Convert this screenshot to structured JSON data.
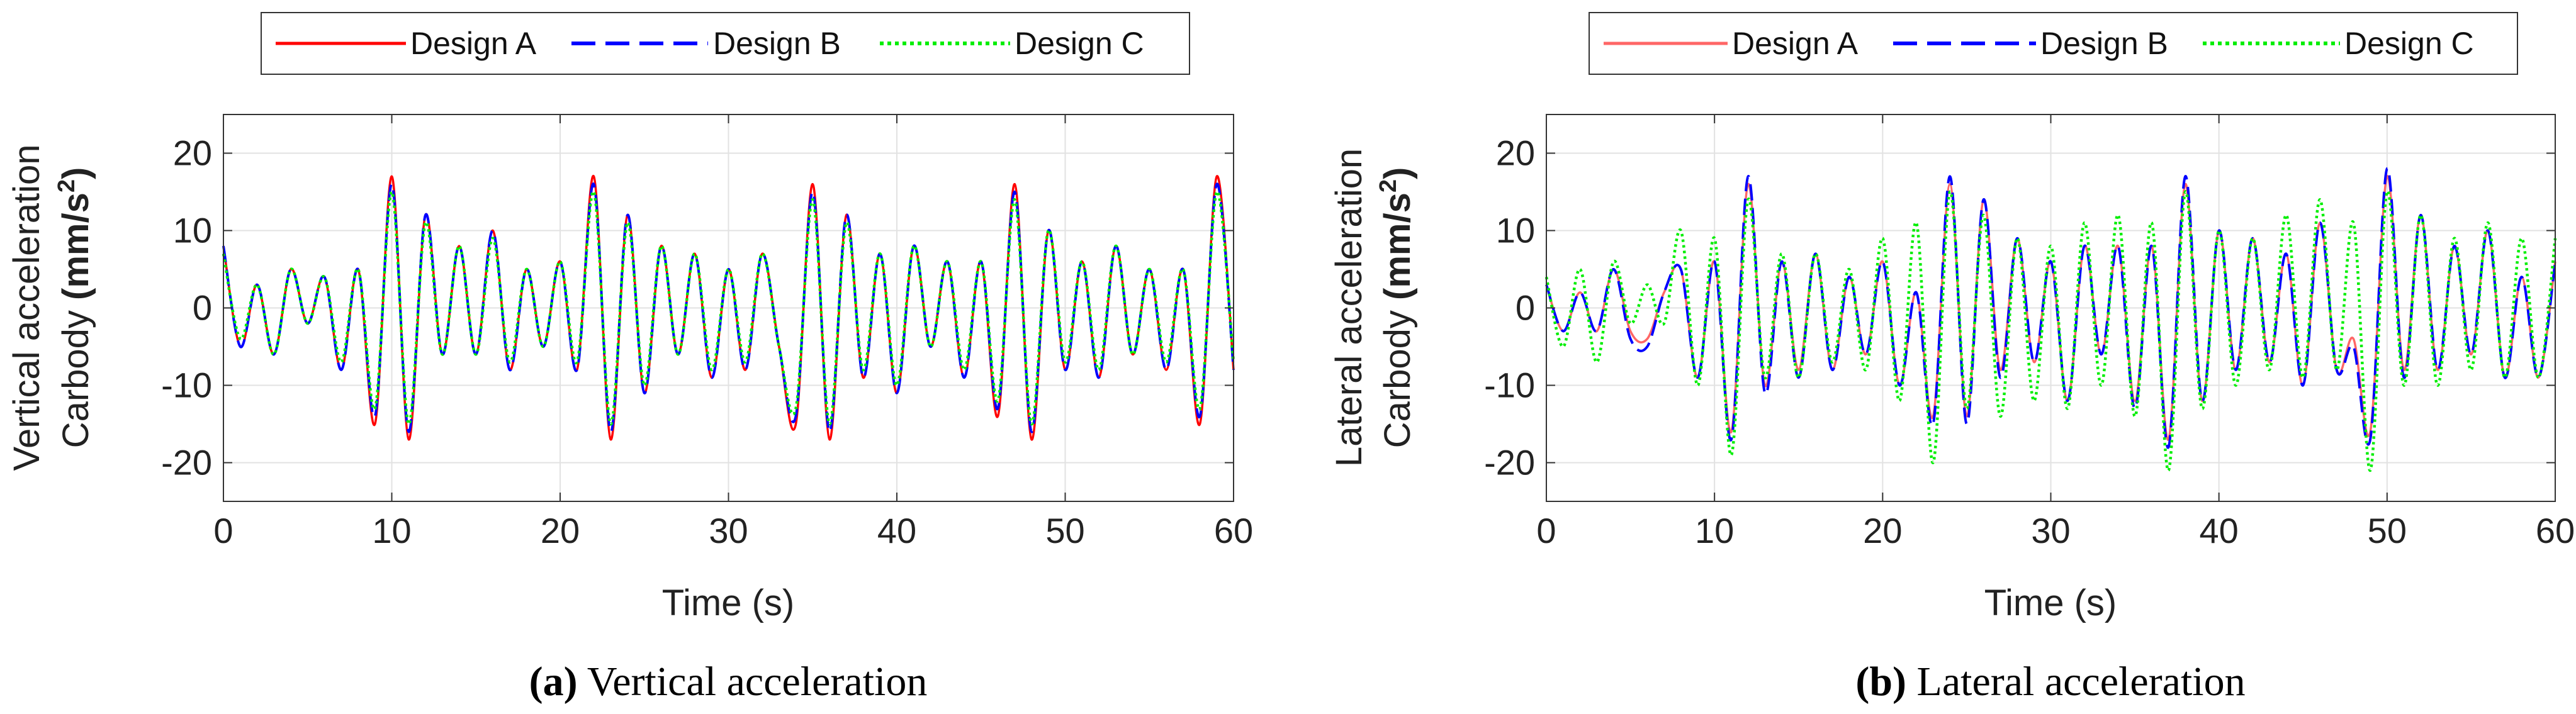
{
  "figure": {
    "panels": [
      {
        "caption_letter": "(a)",
        "caption_text": "Vertical acceleration"
      },
      {
        "caption_letter": "(b)",
        "caption_text": "Lateral acceleration"
      }
    ]
  },
  "chart_data": [
    {
      "type": "line",
      "title": "",
      "xlabel": "Time (s)",
      "ylabel_line1": "Vertical acceleration",
      "ylabel_line2_prefix": "Carbody ",
      "ylabel_unit": "(mm/s",
      "ylabel_unit_sup": "2",
      "ylabel_unit_end": ")",
      "xlim": [
        0,
        60
      ],
      "ylim": [
        -25,
        25
      ],
      "xticks": [
        0,
        10,
        20,
        30,
        40,
        50,
        60
      ],
      "yticks": [
        -20,
        -10,
        0,
        10,
        20
      ],
      "grid": true,
      "legend_position": "top-center",
      "series": [
        {
          "name": "Design A",
          "color": "#ff0000",
          "style": "solid"
        },
        {
          "name": "Design B",
          "color": "#0000ff",
          "style": "dashed"
        },
        {
          "name": "Design C",
          "color": "#00ee00",
          "style": "dotted"
        }
      ],
      "x": [
        0,
        1,
        2,
        3,
        4,
        5,
        6,
        7,
        8,
        9,
        10,
        11,
        12,
        13,
        14,
        15,
        16,
        17,
        18,
        19,
        20,
        21,
        22,
        23,
        24,
        25,
        26,
        27,
        28,
        29,
        30,
        31,
        32,
        33,
        34,
        35,
        36,
        37,
        38,
        39,
        40,
        41,
        42,
        43,
        44,
        45,
        46,
        47,
        48,
        49,
        50,
        51,
        52,
        53,
        54,
        55,
        56,
        57,
        58,
        59,
        60
      ],
      "values": {
        "Design A": [
          8,
          -5,
          3,
          -6,
          5,
          -2,
          4,
          -8,
          5,
          -15,
          17,
          -17,
          12,
          -6,
          8,
          -6,
          10,
          -8,
          5,
          -5,
          6,
          -8,
          17,
          -17,
          12,
          -11,
          8,
          -6,
          7,
          -9,
          5,
          -8,
          7,
          -5,
          -15,
          16,
          -17,
          12,
          -9,
          7,
          -11,
          8,
          -5,
          6,
          -9,
          6,
          -14,
          16,
          -17,
          10,
          -8,
          6,
          -9,
          8,
          -6,
          5,
          -8,
          5,
          -15,
          17,
          -8
        ],
        "Design B": [
          8,
          -5,
          3,
          -6,
          5,
          -2,
          4,
          -8,
          5,
          -14,
          16,
          -16,
          12,
          -6,
          8,
          -6,
          10,
          -8,
          5,
          -5,
          6,
          -8,
          16,
          -16,
          12,
          -11,
          8,
          -6,
          7,
          -9,
          5,
          -8,
          7,
          -5,
          -14,
          15,
          -16,
          12,
          -9,
          7,
          -11,
          8,
          -5,
          6,
          -9,
          6,
          -13,
          15,
          -16,
          10,
          -8,
          6,
          -9,
          8,
          -6,
          5,
          -8,
          5,
          -14,
          16,
          -8
        ],
        "Design C": [
          7,
          -4,
          3,
          -6,
          5,
          -2,
          4,
          -7,
          5,
          -13,
          15,
          -15,
          11,
          -6,
          8,
          -6,
          9,
          -7,
          5,
          -5,
          6,
          -7,
          15,
          -15,
          11,
          -10,
          8,
          -6,
          7,
          -8,
          5,
          -7,
          7,
          -5,
          -13,
          14,
          -15,
          11,
          -8,
          7,
          -10,
          8,
          -5,
          6,
          -8,
          6,
          -12,
          14,
          -15,
          10,
          -7,
          6,
          -8,
          8,
          -6,
          5,
          -7,
          5,
          -13,
          15,
          -7
        ]
      }
    },
    {
      "type": "line",
      "title": "",
      "xlabel": "Time (s)",
      "ylabel_line1": "Lateral acceleration",
      "ylabel_line2_prefix": "Carbody ",
      "ylabel_unit": "(mm/s",
      "ylabel_unit_sup": "2",
      "ylabel_unit_end": ")",
      "xlim": [
        0,
        60
      ],
      "ylim": [
        -25,
        25
      ],
      "xticks": [
        0,
        10,
        20,
        30,
        40,
        50,
        60
      ],
      "yticks": [
        -20,
        -10,
        0,
        10,
        20
      ],
      "grid": true,
      "legend_position": "top-center",
      "series": [
        {
          "name": "Design A",
          "color": "#ff6666",
          "style": "solid"
        },
        {
          "name": "Design B",
          "color": "#0000ff",
          "style": "dashed"
        },
        {
          "name": "Design C",
          "color": "#00ee00",
          "style": "dotted"
        }
      ],
      "x": [
        0,
        1,
        2,
        3,
        4,
        5,
        6,
        7,
        8,
        9,
        10,
        11,
        12,
        13,
        14,
        15,
        16,
        17,
        18,
        19,
        20,
        21,
        22,
        23,
        24,
        25,
        26,
        27,
        28,
        29,
        30,
        31,
        32,
        33,
        34,
        35,
        36,
        37,
        38,
        39,
        40,
        41,
        42,
        43,
        44,
        45,
        46,
        47,
        48,
        49,
        50,
        51,
        52,
        53,
        54,
        55,
        56,
        57,
        58,
        59,
        60
      ],
      "values": {
        "Design A": [
          3,
          -3,
          2,
          -3,
          5,
          -3,
          -4,
          2,
          5,
          -9,
          6,
          -16,
          16,
          -10,
          6,
          -8,
          7,
          -8,
          4,
          -6,
          6,
          -10,
          2,
          -14,
          16,
          -14,
          14,
          -8,
          9,
          -7,
          6,
          -12,
          8,
          -6,
          8,
          -12,
          8,
          -17,
          16,
          -12,
          10,
          -8,
          9,
          -7,
          7,
          -10,
          11,
          -8,
          -4,
          -16,
          17,
          -8,
          12,
          -8,
          8,
          -6,
          10,
          -9,
          4,
          -9,
          6
        ],
        "Design B": [
          3,
          -3,
          2,
          -3,
          5,
          -4,
          -5,
          2,
          5,
          -9,
          6,
          -17,
          17,
          -11,
          6,
          -9,
          7,
          -8,
          4,
          -6,
          6,
          -10,
          2,
          -15,
          17,
          -15,
          14,
          -9,
          9,
          -7,
          6,
          -12,
          8,
          -6,
          8,
          -13,
          8,
          -18,
          17,
          -12,
          10,
          -8,
          9,
          -7,
          7,
          -10,
          11,
          -8,
          -5,
          -17,
          18,
          -9,
          12,
          -8,
          8,
          -6,
          10,
          -9,
          4,
          -9,
          6
        ],
        "Design C": [
          4,
          -5,
          5,
          -7,
          6,
          -2,
          3,
          -2,
          10,
          -10,
          9,
          -19,
          14,
          -9,
          7,
          -9,
          7,
          -7,
          5,
          -8,
          9,
          -12,
          11,
          -20,
          15,
          -13,
          12,
          -14,
          9,
          -12,
          8,
          -13,
          11,
          -10,
          12,
          -14,
          11,
          -21,
          15,
          -13,
          10,
          -10,
          9,
          -8,
          12,
          -9,
          14,
          -8,
          11,
          -21,
          15,
          -10,
          12,
          -10,
          9,
          -8,
          11,
          -9,
          9,
          -9,
          9
        ]
      }
    }
  ]
}
